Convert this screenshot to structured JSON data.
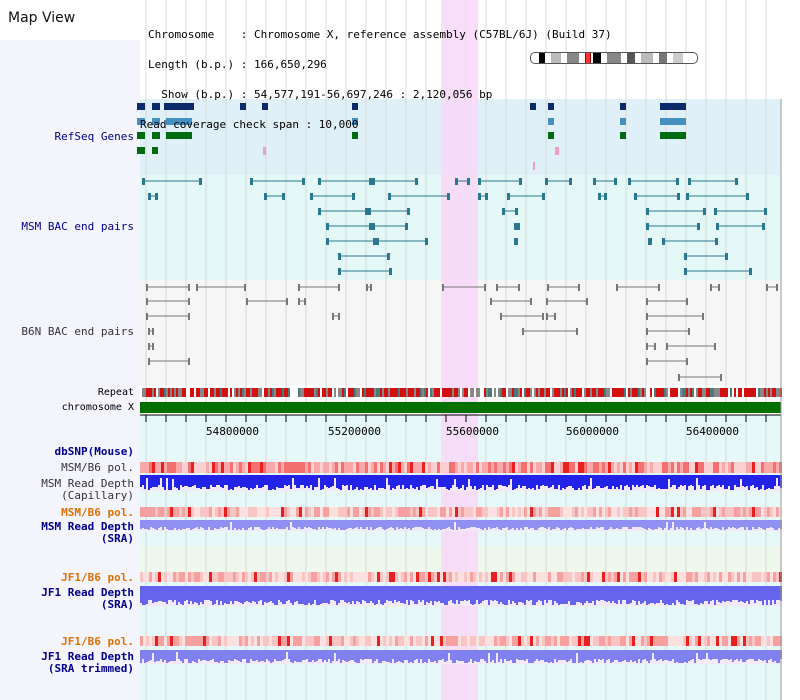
{
  "panel_title": "Map View",
  "header": {
    "lines": [
      "Chromosome    : Chromosome X, reference assembly (C57BL/6J) (Build 37)",
      "Length (b.p.) : 166,650,296",
      "  Show (b.p.) : 54,577,191-56,697,246 : 2,120,056 bp",
      "Read coverage check span : 10,000"
    ]
  },
  "tracks": {
    "refseq_label": "RefSeq Genes",
    "msm_bac_label": "MSM BAC end pairs",
    "b6n_bac_label": "B6N BAC end pairs",
    "repeat_label": "Repeat",
    "chromosome_label": "chromosome X",
    "dbsnp_label": "dbSNP(Mouse)",
    "msm_b6_pol_label": "MSM/B6 pol.",
    "msm_read_depth_cap_label": "MSM Read Depth",
    "msm_read_depth_cap_sub": "(Capillary)",
    "msm_b6_pol_2_label": "MSM/B6 pol.",
    "msm_read_depth_sra_label": "MSM Read Depth",
    "msm_read_depth_sra_sub": "(SRA)",
    "jf1_b6_pol_label": "JF1/B6 pol.",
    "jf1_read_depth_sra_label": "JF1 Read Depth",
    "jf1_read_depth_sra_sub": "(SRA)",
    "jf1_b6_pol_2_label": "JF1/B6 pol.",
    "jf1_read_depth_trim_label": "JF1 Read Depth",
    "jf1_read_depth_trim_sub": "(SRA trimmed)"
  },
  "axis_ticks": [
    "54800000",
    "55200000",
    "55600000",
    "56000000",
    "56400000"
  ],
  "colors": {
    "refseq_bg": "#e0f0f8",
    "msm_bac_bg": "#e4f8f8",
    "b6n_bac_bg": "#f6f6f6",
    "highlight": "#f8d8f8",
    "chromosome_bar": "#007000",
    "depth_blue": "#2020e0",
    "depth_light": "#8888f0",
    "pol_red": "#f05050",
    "label_blue": "#000088",
    "label_orange": "#e07000"
  }
}
